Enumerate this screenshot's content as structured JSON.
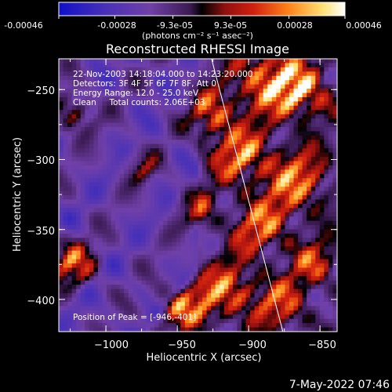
{
  "colorbar": {
    "tick_labels": [
      "-0.00046",
      "-0.00028",
      "-9.3e-05",
      "9.3e-05",
      "0.00028",
      "0.00046"
    ],
    "tick_values": [
      -0.00046,
      -0.00028,
      -9.3e-05,
      9.3e-05,
      0.00028,
      0.00046
    ],
    "range": [
      -0.00046,
      0.00046
    ],
    "unit_label": "(photons cm⁻² s⁻¹ asec⁻²)"
  },
  "title": "Reconstructed RHESSI Image",
  "info_lines": [
    "22-Nov-2003 14:18:04.000 to 14:23:20.000",
    "Detectors: 3F 4F 5F 6F 7F 8F, Att 0",
    "Energy Range: 12.0 - 25.0 keV",
    "Clean     Total counts: 2.06E+03"
  ],
  "peak_label": "Position of Peak = [-946,-401]",
  "footer_timestamp": "7-May-2022 07:46",
  "colors": {
    "background": "#000000",
    "text": "#ffffff",
    "colormap": [
      "#1010c8",
      "#4830b8",
      "#7040a8",
      "#3a1a50",
      "#000000",
      "#b01010",
      "#e04010",
      "#ff9020",
      "#ffe070",
      "#ffffff"
    ]
  },
  "chart_data": {
    "type": "heatmap",
    "title": "Reconstructed RHESSI Image",
    "xlabel": "Heliocentric X (arcsec)",
    "ylabel": "Heliocentric Y (arcsec)",
    "xlim": [
      -1033,
      -838
    ],
    "ylim": [
      -423,
      -228
    ],
    "x_ticks": [
      -1000,
      -950,
      -900,
      -850
    ],
    "x_tick_labels": [
      "−1000",
      "−950",
      "−900",
      "−850"
    ],
    "y_ticks": [
      -400,
      -350,
      -300,
      -250
    ],
    "y_tick_labels": [
      "−400",
      "−350",
      "−300",
      "−250"
    ],
    "value_range": [
      -0.00046,
      0.00046
    ],
    "peak_position": [
      -946,
      -401
    ],
    "limb_line": [
      [
        -926,
        -228
      ],
      [
        -876,
        -423
      ]
    ]
  }
}
